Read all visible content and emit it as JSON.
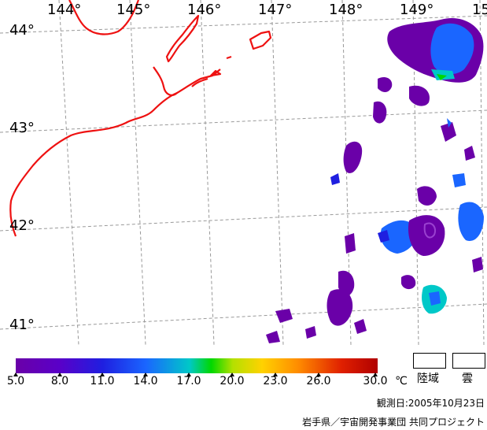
{
  "map": {
    "longitudes": [
      "144°",
      "145°",
      "146°",
      "147°",
      "148°",
      "149°",
      "15"
    ],
    "latitudes": [
      "44°",
      "43°",
      "42°",
      "41°"
    ]
  },
  "legend": {
    "ticks": [
      "5.0",
      "8.0",
      "11.0",
      "14.0",
      "17.0",
      "20.0",
      "23.0",
      "26.0",
      "30.0"
    ],
    "unit": "℃",
    "land_label": "陸域",
    "cloud_label": "雲",
    "colors": [
      "#6a00a8",
      "#1f1fe0",
      "#00c8c8",
      "#00d800",
      "#ffd200",
      "#ff8c00",
      "#b00000"
    ]
  },
  "footer": {
    "observation_date": "観測日:2005年10月23日",
    "credit": "岩手県／宇宙開発事業団 共同プロジェクト"
  }
}
